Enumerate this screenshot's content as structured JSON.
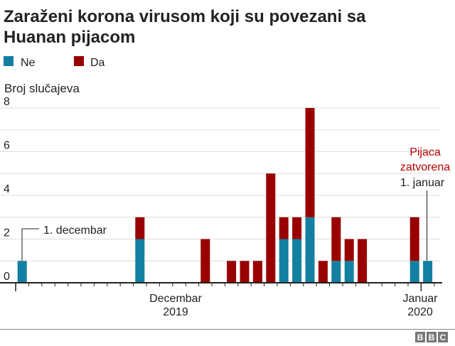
{
  "chart_data": {
    "type": "bar",
    "stacked": true,
    "title": "Zaraženi korona virusom koji su povezani sa Huanan pijacom",
    "title_lines": [
      "Zaraženi korona virusom koji su povezani sa",
      "Huanan pijacom"
    ],
    "ylabel": "Broj slučajeva",
    "ylim": [
      0,
      8
    ],
    "yticks": [
      "0",
      "2",
      "4",
      "6",
      "8"
    ],
    "grid": true,
    "legend_placement": "top-left",
    "x_tick_labels": [
      {
        "line1": "Decembar",
        "line2": "2019"
      },
      {
        "line1": "Januar",
        "line2": "2020"
      }
    ],
    "categories": [
      "1 Dec 2019",
      "10 Dec 2019",
      "15 Dec 2019",
      "17 Dec 2019",
      "18 Dec 2019",
      "19 Dec 2019",
      "20 Dec 2019",
      "21 Dec 2019",
      "22 Dec 2019",
      "23 Dec 2019",
      "24 Dec 2019",
      "25 Dec 2019",
      "26 Dec 2019",
      "27 Dec 2019",
      "31 Dec 2019",
      "1 Jan 2020"
    ],
    "day_index": [
      1,
      10,
      15,
      17,
      18,
      19,
      20,
      21,
      22,
      23,
      24,
      25,
      26,
      27,
      31,
      32
    ],
    "series": [
      {
        "name": "Ne",
        "color": "#1380a1",
        "values": [
          1,
          2,
          0,
          0,
          0,
          0,
          0,
          2,
          2,
          3,
          0,
          1,
          1,
          0,
          1,
          1
        ]
      },
      {
        "name": "Da",
        "color": "#990000",
        "values": [
          0,
          1,
          2,
          1,
          1,
          1,
          5,
          1,
          1,
          5,
          1,
          2,
          1,
          2,
          2,
          0
        ]
      }
    ],
    "annotations": {
      "start": "1. decembar",
      "closed_line1": "Pijaca",
      "closed_line2": "zatvorena",
      "closed_date": "1. januar"
    }
  },
  "footer": {
    "logo": "BBC",
    "logo_letters": [
      "B",
      "B",
      "C"
    ]
  }
}
